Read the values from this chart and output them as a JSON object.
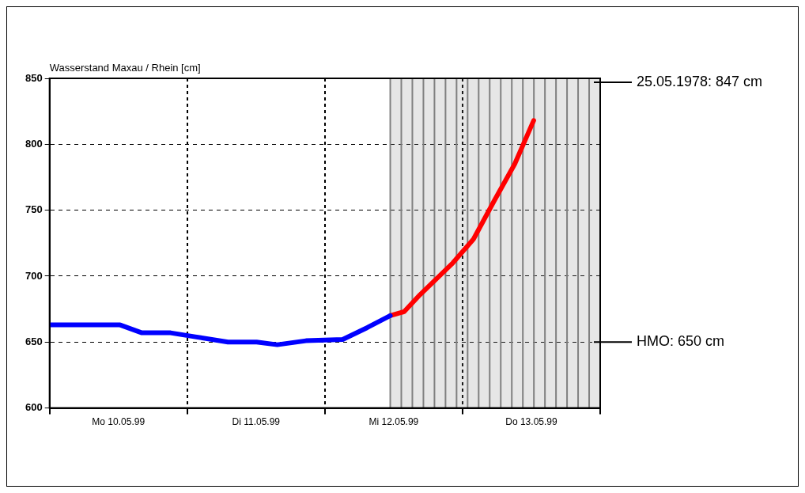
{
  "chart_data": {
    "type": "line",
    "ylabel": "Wasserstand Maxau / Rhein [cm]",
    "xlim": [
      "1999-05-10T00:00",
      "1999-05-14T00:00"
    ],
    "ylim": [
      600,
      850
    ],
    "xticks": [
      {
        "value": "1999-05-10T00:00",
        "label": null
      },
      {
        "value": "1999-05-10T12:00",
        "label": "Mo 10.05.99"
      },
      {
        "value": "1999-05-11T00:00",
        "label": null
      },
      {
        "value": "1999-05-11T12:00",
        "label": "Di 11.05.99"
      },
      {
        "value": "1999-05-12T00:00",
        "label": null
      },
      {
        "value": "1999-05-12T12:00",
        "label": "Mi 12.05.99"
      },
      {
        "value": "1999-05-13T00:00",
        "label": null
      },
      {
        "value": "1999-05-13T12:00",
        "label": "Do 13.05.99"
      },
      {
        "value": "1999-05-14T00:00",
        "label": null
      }
    ],
    "yticks": [
      600,
      650,
      700,
      750,
      800,
      850
    ],
    "grid": true,
    "legend": false,
    "marker": "none",
    "line_style": "solid",
    "series": [
      {
        "color": "#0000ff",
        "x": [
          "1999-05-10T00:00",
          "1999-05-10T12:18",
          "1999-05-10T16:06",
          "1999-05-10T21:06",
          "1999-05-11T01:24",
          "1999-05-11T07:06",
          "1999-05-11T12:06",
          "1999-05-11T15:42",
          "1999-05-11T20:42",
          "1999-05-12T03:06",
          "1999-05-12T07:24",
          "1999-05-12T11:24"
        ],
        "values": [
          663,
          663,
          657,
          657,
          654,
          650,
          650,
          648,
          651,
          652,
          661,
          670
        ]
      },
      {
        "color": "#ff0000",
        "x": [
          "1999-05-12T11:24",
          "1999-05-12T13:48",
          "1999-05-12T16:36",
          "1999-05-12T22:18",
          "1999-05-13T01:54",
          "1999-05-13T05:30",
          "1999-05-13T09:06",
          "1999-05-13T12:24"
        ],
        "values": [
          670,
          673,
          686,
          710,
          728,
          757,
          785,
          818
        ]
      }
    ],
    "bands": [
      {
        "axis": "x",
        "from": "1999-05-12T11:24",
        "to": "1999-05-14T00:00",
        "color": "#808080"
      }
    ],
    "ref_lines": [
      {
        "axis": "y",
        "value": 847,
        "label": "25.05.1978: 847 cm"
      },
      {
        "axis": "y",
        "value": 650,
        "label": "HMO: 650 cm"
      }
    ]
  }
}
